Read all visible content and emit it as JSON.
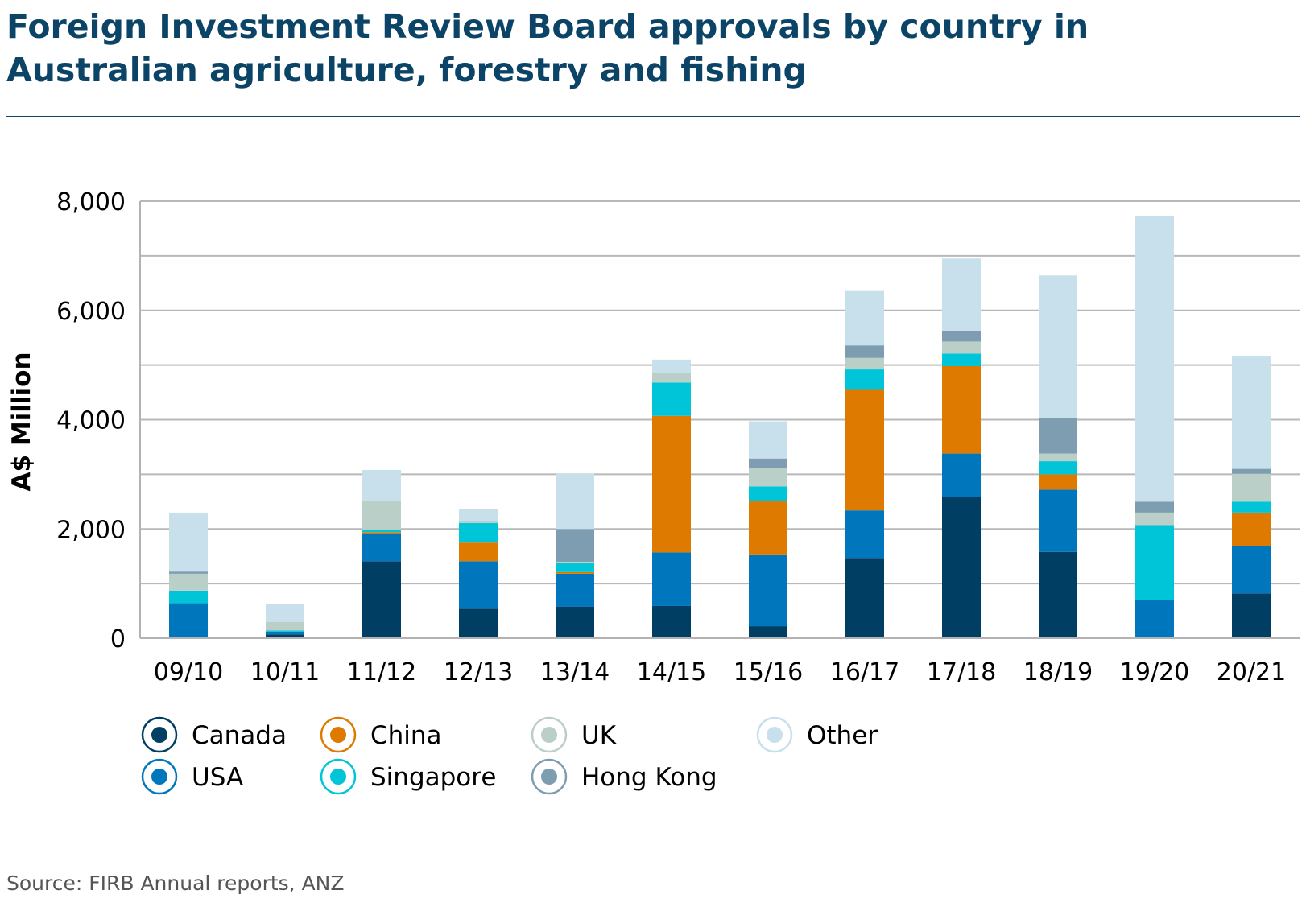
{
  "header": {
    "title": "Foreign Investment Review Board approvals by country in Australian agriculture, forestry and fishing"
  },
  "footer": {
    "source": "Source: FIRB Annual reports, ANZ"
  },
  "chart_data": {
    "type": "bar",
    "stacked": true,
    "title": "Foreign Investment Review Board approvals by country in Australian agriculture, forestry and fishing",
    "xlabel": "",
    "ylabel": "A$ Million",
    "ylim": [
      0,
      8000
    ],
    "yticks": [
      0,
      2000,
      4000,
      6000,
      8000
    ],
    "ytick_labels": [
      "0",
      "2,000",
      "4,000",
      "6,000",
      "8,000"
    ],
    "grid": true,
    "legend_position": "bottom",
    "categories": [
      "09/10",
      "10/11",
      "11/12",
      "12/13",
      "13/14",
      "14/15",
      "15/16",
      "16/17",
      "17/18",
      "18/19",
      "19/20",
      "20/21"
    ],
    "series": [
      {
        "name": "Canada",
        "color": "#003f63",
        "values": [
          20,
          70,
          1410,
          540,
          580,
          590,
          220,
          1470,
          2590,
          1580,
          10,
          820
        ]
      },
      {
        "name": "USA",
        "color": "#0077bd",
        "values": [
          620,
          50,
          500,
          870,
          600,
          980,
          1300,
          870,
          790,
          1140,
          690,
          870
        ]
      },
      {
        "name": "China",
        "color": "#df7a00",
        "values": [
          0,
          0,
          30,
          340,
          30,
          2500,
          990,
          2220,
          1600,
          280,
          0,
          610
        ]
      },
      {
        "name": "Singapore",
        "color": "#00c5d8",
        "values": [
          230,
          20,
          50,
          360,
          160,
          610,
          270,
          360,
          230,
          240,
          1370,
          200
        ]
      },
      {
        "name": "UK",
        "color": "#b9cfc8",
        "values": [
          310,
          160,
          530,
          30,
          30,
          170,
          340,
          210,
          220,
          140,
          230,
          510
        ]
      },
      {
        "name": "Hong Kong",
        "color": "#7f9db1",
        "values": [
          40,
          0,
          0,
          0,
          600,
          0,
          170,
          230,
          200,
          650,
          200,
          90
        ]
      },
      {
        "name": "Other",
        "color": "#c8dfec",
        "values": [
          1080,
          320,
          560,
          230,
          1010,
          250,
          680,
          1010,
          1320,
          2610,
          5220,
          2070
        ]
      }
    ]
  }
}
